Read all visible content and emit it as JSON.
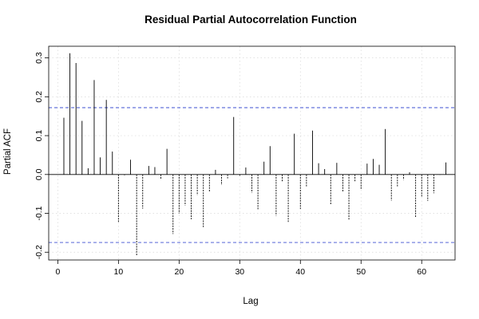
{
  "chart_data": {
    "type": "bar",
    "title": "Residual Partial Autocorrelation Function",
    "xlabel": "Lag",
    "ylabel": "Partial ACF",
    "xlim": [
      -1.5,
      65.5
    ],
    "ylim": [
      -0.22,
      0.33
    ],
    "xticks": [
      0,
      10,
      20,
      30,
      40,
      50,
      60
    ],
    "yticks": [
      -0.2,
      -0.1,
      0.0,
      0.1,
      0.2,
      0.3
    ],
    "ytick_labels": [
      "-0.2",
      "-0.1",
      "0.0",
      "0.1",
      "0.2",
      "0.3"
    ],
    "grid": true,
    "confidence_bounds": [
      0.172,
      -0.175
    ],
    "x": [
      1,
      2,
      3,
      4,
      5,
      6,
      7,
      8,
      9,
      10,
      11,
      12,
      13,
      14,
      15,
      16,
      17,
      18,
      19,
      20,
      21,
      22,
      23,
      24,
      25,
      26,
      27,
      28,
      29,
      30,
      31,
      32,
      33,
      34,
      35,
      36,
      37,
      38,
      39,
      40,
      41,
      42,
      43,
      44,
      45,
      46,
      47,
      48,
      49,
      50,
      51,
      52,
      53,
      54,
      55,
      56,
      57,
      58,
      59,
      60,
      61,
      62,
      63,
      64
    ],
    "values": [
      0.146,
      0.312,
      0.287,
      0.138,
      0.016,
      0.243,
      0.044,
      0.192,
      0.059,
      -0.122,
      -0.002,
      0.038,
      -0.21,
      -0.088,
      0.022,
      0.019,
      -0.013,
      0.066,
      -0.153,
      -0.1,
      -0.08,
      -0.115,
      -0.053,
      -0.137,
      -0.045,
      0.012,
      -0.027,
      -0.01,
      0.148,
      -0.003,
      0.018,
      -0.047,
      -0.09,
      0.033,
      0.073,
      -0.106,
      -0.018,
      -0.122,
      0.105,
      -0.089,
      -0.032,
      0.113,
      0.029,
      0.014,
      -0.078,
      0.03,
      -0.046,
      -0.118,
      -0.018,
      -0.039,
      0.028,
      0.04,
      0.025,
      0.117,
      -0.067,
      -0.032,
      -0.014,
      0.006,
      -0.111,
      -0.057,
      -0.068,
      -0.048,
      -0.001,
      0.031
    ]
  }
}
